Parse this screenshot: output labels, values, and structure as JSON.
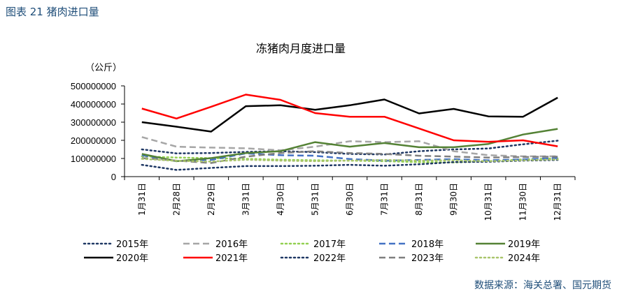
{
  "figure_label": "图表 21  猪肉进口量",
  "source": "数据来源：海关总署、国元期货",
  "chart_data": {
    "type": "line",
    "title": "冻猪肉月度进口量",
    "ylabel": "（公斤）",
    "xlabel": "",
    "ylim": [
      0,
      500000000
    ],
    "yticks": [
      "500000000",
      "400000000",
      "300000000",
      "200000000",
      "100000000",
      "0"
    ],
    "ytick_values": [
      500000000,
      400000000,
      300000000,
      200000000,
      100000000,
      0
    ],
    "categories": [
      "1月31日",
      "2月28日",
      "2月29日",
      "3月31日",
      "4月30日",
      "5月31日",
      "6月30日",
      "7月31日",
      "8月31日",
      "9月30日",
      "10月31日",
      "11月30日",
      "12月31日"
    ],
    "series": [
      {
        "name": "2015年",
        "color": "#1f3864",
        "dash": "dot",
        "values": [
          150000000,
          128000000,
          130000000,
          136000000,
          140000000,
          135000000,
          125000000,
          122000000,
          140000000,
          150000000,
          155000000,
          178000000,
          198000000
        ]
      },
      {
        "name": "2016年",
        "color": "#a6a6a6",
        "dash": "dash",
        "values": [
          218000000,
          165000000,
          160000000,
          156000000,
          145000000,
          165000000,
          195000000,
          190000000,
          195000000,
          140000000,
          118000000,
          112000000,
          112000000
        ]
      },
      {
        "name": "2017年",
        "color": "#92d050",
        "dash": "dot",
        "values": [
          112000000,
          105000000,
          102000000,
          98000000,
          93000000,
          90000000,
          88000000,
          85000000,
          80000000,
          78000000,
          85000000,
          95000000,
          100000000
        ]
      },
      {
        "name": "2018年",
        "color": "#4472c4",
        "dash": "dash",
        "values": [
          118000000,
          85000000,
          92000000,
          128000000,
          118000000,
          115000000,
          97000000,
          88000000,
          92000000,
          96000000,
          90000000,
          95000000,
          102000000
        ]
      },
      {
        "name": "2019年",
        "color": "#548235",
        "dash": "solid",
        "values": [
          125000000,
          85000000,
          102000000,
          130000000,
          140000000,
          190000000,
          165000000,
          185000000,
          162000000,
          162000000,
          180000000,
          232000000,
          263000000
        ]
      },
      {
        "name": "2020年",
        "color": "#000000",
        "dash": "solid",
        "values": [
          300000000,
          275000000,
          248000000,
          388000000,
          393000000,
          368000000,
          393000000,
          425000000,
          348000000,
          373000000,
          332000000,
          330000000,
          435000000
        ]
      },
      {
        "name": "2021年",
        "color": "#ff0000",
        "dash": "solid",
        "values": [
          375000000,
          320000000,
          385000000,
          452000000,
          423000000,
          350000000,
          330000000,
          330000000,
          265000000,
          200000000,
          192000000,
          200000000,
          167000000
        ]
      },
      {
        "name": "2022年",
        "color": "#1f3864",
        "dash": "dot",
        "values": [
          65000000,
          37000000,
          48000000,
          58000000,
          58000000,
          60000000,
          65000000,
          60000000,
          68000000,
          80000000,
          82000000,
          88000000,
          92000000
        ]
      },
      {
        "name": "2023年",
        "color": "#7f7f7f",
        "dash": "dash",
        "values": [
          102000000,
          88000000,
          75000000,
          110000000,
          130000000,
          140000000,
          130000000,
          125000000,
          115000000,
          110000000,
          105000000,
          108000000,
          110000000
        ]
      },
      {
        "name": "2024年",
        "color": "#a9c56b",
        "dash": "dot",
        "values": [
          98000000,
          87000000,
          83000000,
          93000000,
          88000000,
          85000000,
          88000000,
          92000000,
          88000000,
          90000000,
          85000000,
          90000000,
          95000000
        ]
      }
    ],
    "legend_position": "bottom",
    "grid": false
  }
}
